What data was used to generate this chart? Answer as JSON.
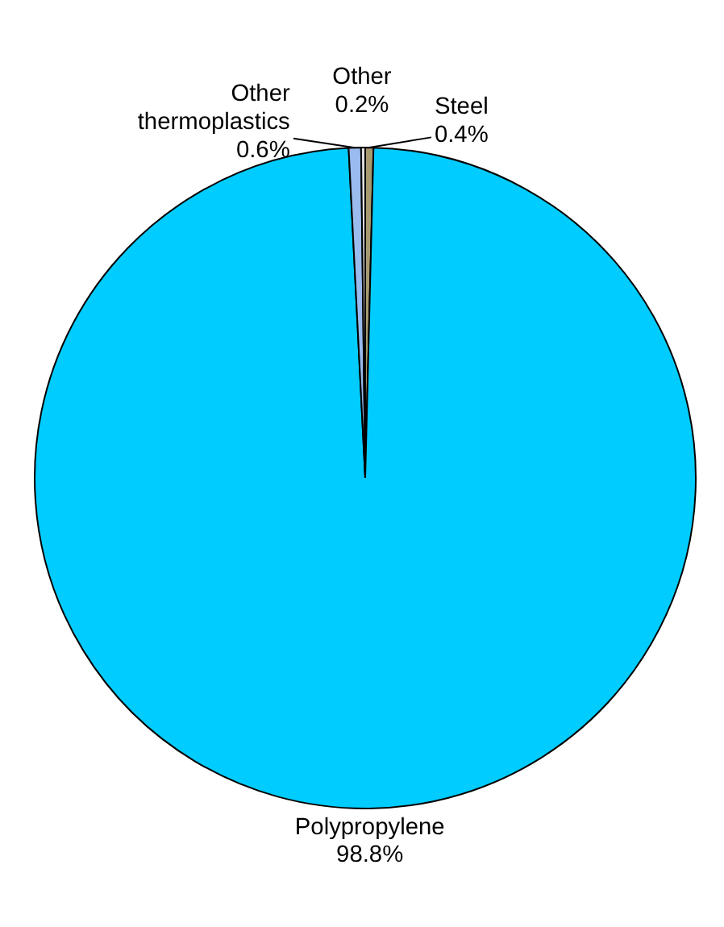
{
  "chart_data": {
    "type": "pie",
    "categories": [
      "Steel",
      "Polypropylene",
      "Other thermoplastics",
      "Other"
    ],
    "values": [
      0.4,
      98.8,
      0.6,
      0.2
    ],
    "colors": [
      "#a89a70",
      "#00ccff",
      "#99bbee",
      "#e0e0e0"
    ],
    "value_labels": [
      "0.4%",
      "98.8%",
      "0.6%",
      "0.2%"
    ]
  }
}
